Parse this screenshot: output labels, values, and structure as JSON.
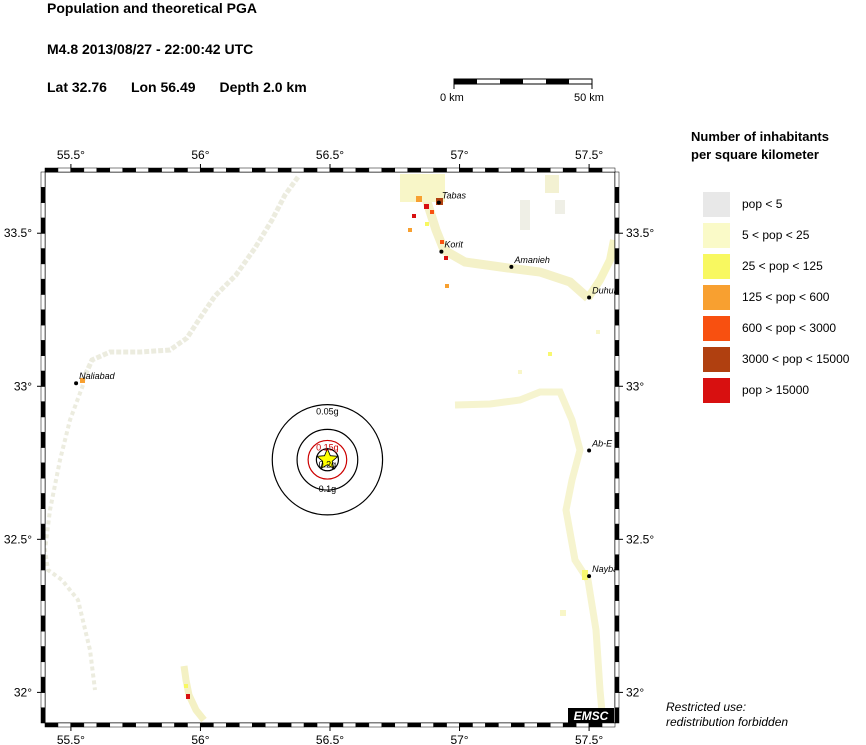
{
  "header": {
    "title": "Population and theoretical PGA",
    "event": "M4.8  2013/08/27 - 22:00:42 UTC",
    "lat": "Lat 32.76",
    "lon": "Lon  56.49",
    "depth": "Depth  2.0 km"
  },
  "scale_bar": {
    "start_label": "0 km",
    "end_label": "50 km"
  },
  "map": {
    "lon_range": [
      55.4,
      57.6
    ],
    "lat_range": [
      31.9,
      33.7
    ],
    "lon_ticks": [
      {
        "value": 55.5,
        "label": "55.5°"
      },
      {
        "value": 56.0,
        "label": "56°"
      },
      {
        "value": 56.5,
        "label": "56.5°"
      },
      {
        "value": 57.0,
        "label": "57°"
      },
      {
        "value": 57.5,
        "label": "57.5°"
      }
    ],
    "lat_ticks": [
      {
        "value": 33.5,
        "label": "33.5°"
      },
      {
        "value": 33.0,
        "label": "33°"
      },
      {
        "value": 32.5,
        "label": "32.5°"
      },
      {
        "value": 32.0,
        "label": "32°"
      }
    ],
    "epicenter": {
      "lon": 56.49,
      "lat": 32.76,
      "symbol": "star",
      "color": "#ffff00"
    },
    "pga_circles": [
      {
        "label": "0.05g",
        "color": "#000000",
        "radius_km": 20
      },
      {
        "label": "0.1g",
        "color": "#000000",
        "radius_km": 11
      },
      {
        "label": "0.15g",
        "color": "#cc0000",
        "radius_km": 7
      },
      {
        "label": "0.2g",
        "color": "#000000",
        "radius_km": 4
      }
    ],
    "cities": [
      {
        "name": "Tabas",
        "lon": 56.92,
        "lat": 33.6
      },
      {
        "name": "Korit",
        "lon": 56.93,
        "lat": 33.44
      },
      {
        "name": "Amanieh",
        "lon": 57.2,
        "lat": 33.39
      },
      {
        "name": "Duhuk",
        "lon": 57.5,
        "lat": 33.29
      },
      {
        "name": "Naliabad",
        "lon": 55.52,
        "lat": 33.01
      },
      {
        "name": "Ab-E",
        "lon": 57.5,
        "lat": 32.79
      },
      {
        "name": "Nayband",
        "lon": 57.5,
        "lat": 32.38
      }
    ],
    "logo": "EMSC"
  },
  "legend": {
    "title_line1": "Number of inhabitants",
    "title_line2": "per square kilometer",
    "items": [
      {
        "label": "pop < 5",
        "color": "#e8e8e8"
      },
      {
        "label": "5 < pop < 25",
        "color": "#fafac8"
      },
      {
        "label": "25 < pop < 125",
        "color": "#f8f860"
      },
      {
        "label": "125 < pop < 600",
        "color": "#f8a030"
      },
      {
        "label": "600 < pop < 3000",
        "color": "#f85010"
      },
      {
        "label": "3000 < pop < 15000",
        "color": "#b04010"
      },
      {
        "label": "pop > 15000",
        "color": "#d81010"
      }
    ]
  },
  "footer": {
    "line1": "Restricted use:",
    "line2": "redistribution forbidden"
  }
}
